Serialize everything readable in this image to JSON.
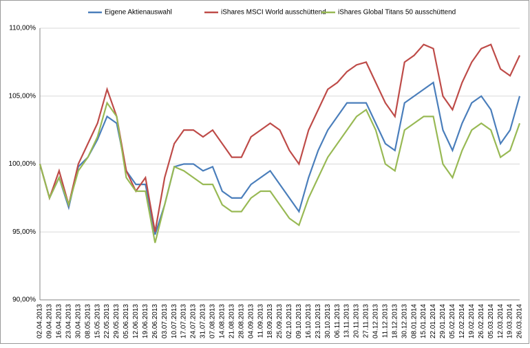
{
  "chart_data": {
    "type": "line",
    "categories": [
      "02.04.2013",
      "09.04.2013",
      "16.04.2013",
      "23.04.2013",
      "30.04.2013",
      "08.05.2013",
      "15.05.2013",
      "22.05.2013",
      "29.05.2013",
      "05.06.2013",
      "12.06.2013",
      "19.06.2013",
      "26.06.2013",
      "03.07.2013",
      "10.07.2013",
      "17.07.2013",
      "24.07.2013",
      "31.07.2013",
      "07.08.2013",
      "14.08.2013",
      "21.08.2013",
      "28.08.2013",
      "04.09.2013",
      "11.09.2013",
      "18.09.2013",
      "25.09.2013",
      "02.10.2013",
      "09.10.2013",
      "16.10.2013",
      "23.10.2013",
      "30.10.2013",
      "06.11.2013",
      "13.11.2013",
      "20.11.2013",
      "27.11.2013",
      "04.12.2013",
      "11.12.2013",
      "18.12.2013",
      "30.12.2013",
      "08.01.2014",
      "15.01.2014",
      "22.01.2014",
      "29.01.2014",
      "05.02.2014",
      "12.02.2014",
      "19.02.2014",
      "26.02.2014",
      "05.03.2014",
      "12.03.2014",
      "19.03.2014",
      "26.03.2014"
    ],
    "series": [
      {
        "name": "Eigene Aktienauswahl",
        "color": "#4a7ebb",
        "values": [
          100,
          97.5,
          99,
          96.8,
          99.8,
          100.5,
          101.8,
          103.5,
          103,
          99.5,
          98.5,
          98.5,
          94.8,
          97,
          99.8,
          100,
          100,
          99.5,
          99.8,
          98,
          97.5,
          97.5,
          98.5,
          99,
          99.5,
          98.5,
          97.5,
          96.5,
          99,
          101,
          102.5,
          103.5,
          104.5,
          104.5,
          104.5,
          103,
          101.5,
          101,
          104.5,
          105,
          105.5,
          106,
          102.5,
          101,
          103,
          104.5,
          105,
          104,
          101.5,
          102.5,
          105
        ]
      },
      {
        "name": "iShares MSCI World ausschüttend",
        "color": "#be4b48",
        "values": [
          100,
          97.5,
          99.5,
          97,
          100,
          101.5,
          103,
          105.5,
          103.5,
          99.5,
          98,
          99,
          95,
          99,
          101.5,
          102.5,
          102.5,
          102,
          102.5,
          101.5,
          100.5,
          100.5,
          102,
          102.5,
          103,
          102.5,
          101,
          100,
          102.5,
          104,
          105.5,
          106,
          106.8,
          107.3,
          107.5,
          106,
          104.5,
          103.5,
          107.5,
          108,
          108.8,
          108.5,
          105,
          104,
          106,
          107.5,
          108.5,
          108.8,
          107,
          106.5,
          108
        ]
      },
      {
        "name": "iShares Global Titans 50 ausschüttend",
        "color": "#98b954",
        "values": [
          100,
          97.5,
          99,
          97,
          99.5,
          100.5,
          102,
          104.5,
          103.5,
          99,
          98,
          98,
          94.2,
          97,
          99.8,
          99.5,
          99,
          98.5,
          98.5,
          97,
          96.5,
          96.5,
          97.5,
          98,
          98,
          97,
          96,
          95.5,
          97.5,
          99,
          100.5,
          101.5,
          102.5,
          103.5,
          104,
          102.5,
          100,
          99.5,
          102.5,
          103,
          103.5,
          103.5,
          100,
          99,
          101,
          102.5,
          103,
          102.5,
          100.5,
          101,
          103
        ]
      }
    ],
    "ylim": [
      90,
      110
    ],
    "yticks": [
      {
        "value": 90,
        "label": "90,00%"
      },
      {
        "value": 95,
        "label": "95,00%"
      },
      {
        "value": 100,
        "label": "100,00%"
      },
      {
        "value": 105,
        "label": "105,00%"
      },
      {
        "value": 110,
        "label": "110,00%"
      }
    ],
    "grid": true,
    "legend": "top"
  }
}
